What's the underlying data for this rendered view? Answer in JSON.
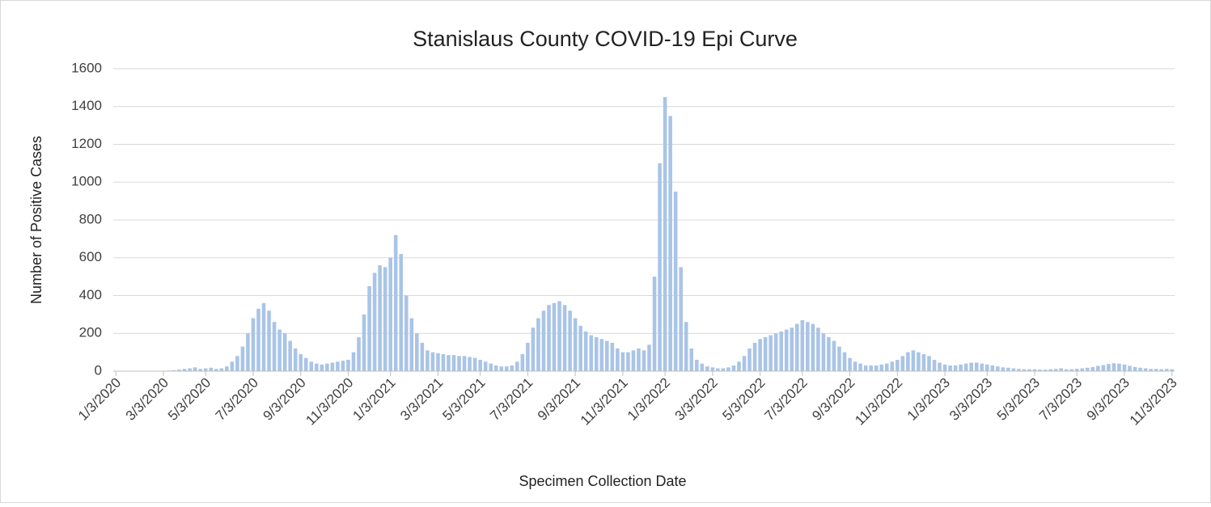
{
  "chart_data": {
    "type": "bar",
    "title": "Stanislaus County COVID-19 Epi Curve",
    "x_label": "Specimen Collection Date",
    "y_label": "Number of Positive Cases",
    "color": "#a9c4e6",
    "grid": true,
    "ylim": [
      0,
      1600
    ],
    "yticks": [
      0,
      200,
      400,
      600,
      800,
      1000,
      1200,
      1400,
      1600
    ],
    "categories": [
      "1/3/2020",
      null,
      null,
      null,
      null,
      null,
      null,
      null,
      null,
      "3/3/2020",
      null,
      null,
      null,
      null,
      null,
      null,
      null,
      "5/3/2020",
      null,
      null,
      null,
      null,
      null,
      null,
      null,
      null,
      "7/3/2020",
      null,
      null,
      null,
      null,
      null,
      null,
      null,
      null,
      "9/3/2020",
      null,
      null,
      null,
      null,
      null,
      null,
      null,
      null,
      "11/3/2020",
      null,
      null,
      null,
      null,
      null,
      null,
      null,
      "1/3/2021",
      null,
      null,
      null,
      null,
      null,
      null,
      null,
      null,
      "3/3/2021",
      null,
      null,
      null,
      null,
      null,
      null,
      null,
      "5/3/2021",
      null,
      null,
      null,
      null,
      null,
      null,
      null,
      null,
      "7/3/2021",
      null,
      null,
      null,
      null,
      null,
      null,
      null,
      null,
      "9/3/2021",
      null,
      null,
      null,
      null,
      null,
      null,
      null,
      null,
      "11/3/2021",
      null,
      null,
      null,
      null,
      null,
      null,
      null,
      "1/3/2022",
      null,
      null,
      null,
      null,
      null,
      null,
      null,
      null,
      "3/3/2022",
      null,
      null,
      null,
      null,
      null,
      null,
      null,
      null,
      "5/3/2022",
      null,
      null,
      null,
      null,
      null,
      null,
      null,
      "7/3/2022",
      null,
      null,
      null,
      null,
      null,
      null,
      null,
      null,
      "9/3/2022",
      null,
      null,
      null,
      null,
      null,
      null,
      null,
      null,
      "11/3/2022",
      null,
      null,
      null,
      null,
      null,
      null,
      null,
      null,
      "1/3/2023",
      null,
      null,
      null,
      null,
      null,
      null,
      null,
      "3/3/2023",
      null,
      null,
      null,
      null,
      null,
      null,
      null,
      null,
      "5/3/2023",
      null,
      null,
      null,
      null,
      null,
      null,
      null,
      "7/3/2023",
      null,
      null,
      null,
      null,
      null,
      null,
      null,
      null,
      "9/3/2023",
      null,
      null,
      null,
      null,
      null,
      null,
      null,
      null,
      "11/3/2023"
    ],
    "values": [
      0,
      0,
      0,
      0,
      0,
      0,
      0,
      0,
      0,
      1,
      3,
      5,
      8,
      12,
      15,
      20,
      12,
      15,
      18,
      12,
      15,
      25,
      50,
      80,
      130,
      200,
      280,
      330,
      360,
      320,
      260,
      220,
      200,
      160,
      120,
      90,
      70,
      50,
      40,
      35,
      40,
      45,
      50,
      55,
      60,
      100,
      180,
      300,
      450,
      520,
      560,
      550,
      600,
      720,
      620,
      400,
      280,
      200,
      150,
      110,
      100,
      95,
      90,
      85,
      85,
      80,
      80,
      75,
      70,
      60,
      50,
      40,
      30,
      25,
      25,
      30,
      50,
      90,
      150,
      230,
      280,
      320,
      350,
      360,
      370,
      350,
      320,
      280,
      240,
      210,
      190,
      180,
      170,
      160,
      150,
      120,
      100,
      100,
      110,
      120,
      110,
      140,
      500,
      1100,
      1450,
      1350,
      950,
      550,
      260,
      120,
      60,
      40,
      25,
      20,
      15,
      15,
      20,
      30,
      50,
      80,
      120,
      150,
      170,
      180,
      190,
      200,
      210,
      220,
      230,
      250,
      270,
      260,
      250,
      230,
      200,
      180,
      160,
      130,
      100,
      70,
      50,
      40,
      30,
      30,
      30,
      35,
      40,
      50,
      60,
      80,
      100,
      110,
      100,
      90,
      80,
      60,
      45,
      35,
      30,
      30,
      35,
      40,
      45,
      45,
      40,
      35,
      30,
      25,
      20,
      18,
      15,
      12,
      10,
      10,
      10,
      8,
      8,
      10,
      12,
      15,
      10,
      10,
      12,
      15,
      18,
      22,
      28,
      32,
      38,
      42,
      40,
      35,
      28,
      22,
      18,
      15,
      12,
      12,
      10,
      12,
      10
    ]
  }
}
